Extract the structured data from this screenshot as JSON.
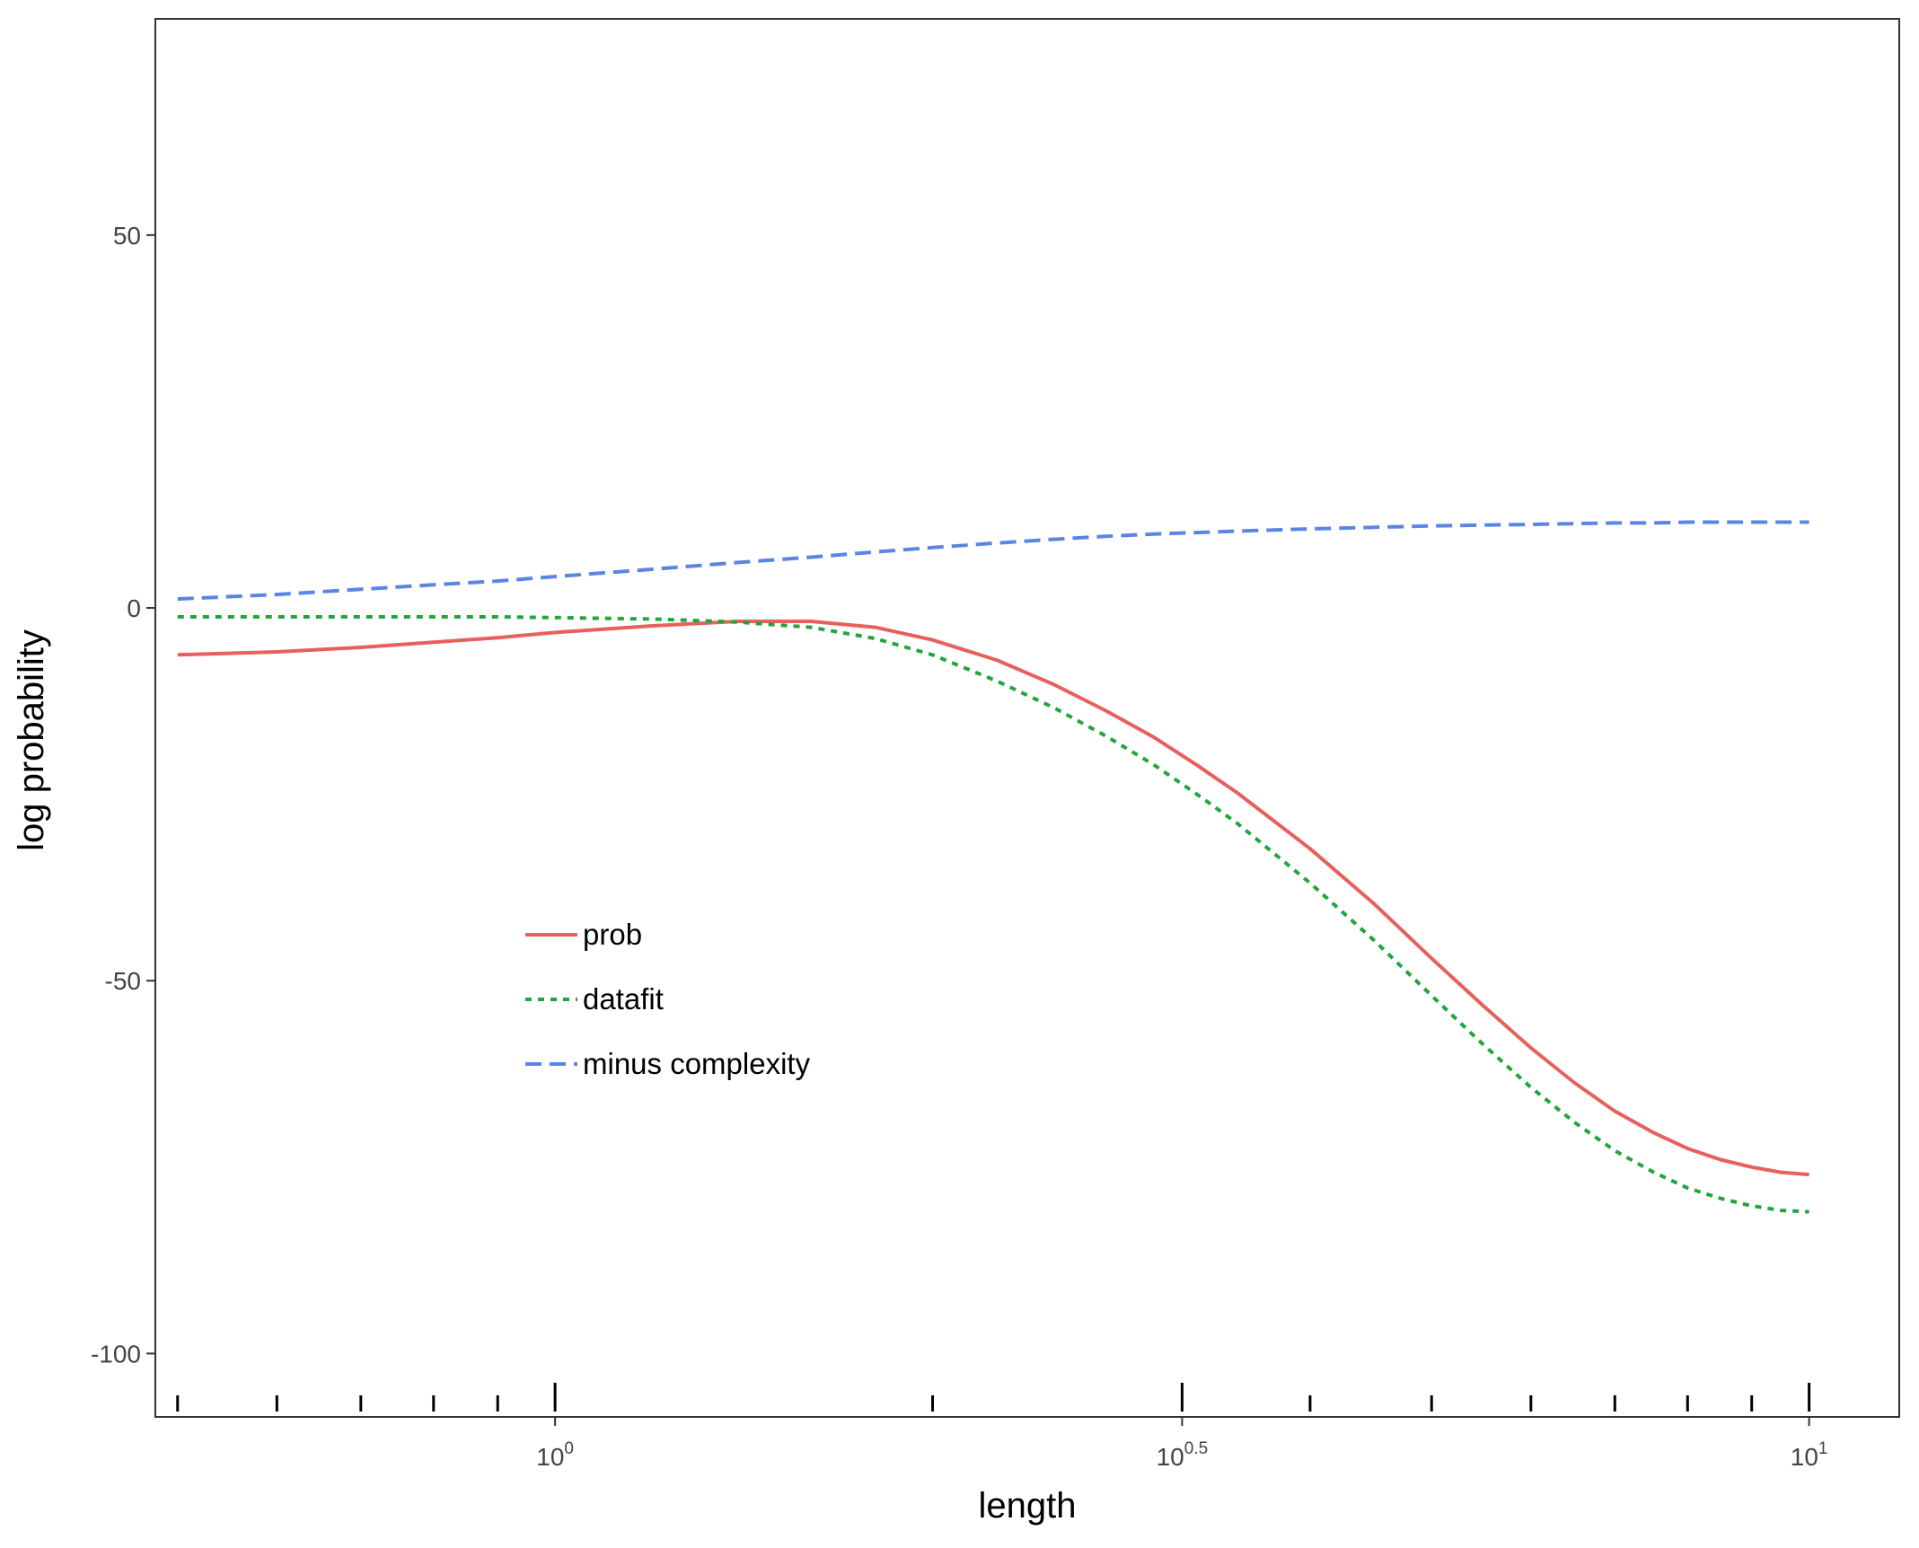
{
  "chart_data": {
    "type": "line",
    "xscale": "log10",
    "xlabel": "length",
    "ylabel": "log probability",
    "xlim": [
      0.48,
      11.8
    ],
    "ylim": [
      -108.5,
      79
    ],
    "grid": false,
    "legend_position": "inside-bottom-left",
    "x_major_ticks": [
      {
        "value": 1,
        "base": "10",
        "exp": "0"
      },
      {
        "value": 3.1623,
        "base": "10",
        "exp": "0.5"
      },
      {
        "value": 10,
        "base": "10",
        "exp": "1"
      }
    ],
    "x_minor_ticks": [
      0.5,
      0.6,
      0.7,
      0.8,
      0.9,
      2,
      4,
      5,
      6,
      7,
      8,
      9
    ],
    "y_ticks": [
      {
        "value": 50,
        "label": "50"
      },
      {
        "value": 0,
        "label": "0"
      },
      {
        "value": -50,
        "label": "-50"
      },
      {
        "value": -100,
        "label": "-100"
      }
    ],
    "x": [
      0.5,
      0.6,
      0.7,
      0.8,
      0.9,
      1.0,
      1.2,
      1.4,
      1.6,
      1.8,
      2.0,
      2.25,
      2.5,
      2.75,
      3.0,
      3.25,
      3.5,
      4.0,
      4.5,
      5.0,
      5.5,
      6.0,
      6.5,
      7.0,
      7.5,
      8.0,
      8.5,
      9.0,
      9.5,
      10.0
    ],
    "series": [
      {
        "name": "prob",
        "color": "#e8605b",
        "dash": "solid",
        "values": [
          -6.3,
          -5.9,
          -5.3,
          -4.6,
          -4.0,
          -3.3,
          -2.4,
          -1.8,
          -1.8,
          -2.6,
          -4.3,
          -7.0,
          -10.3,
          -13.8,
          -17.3,
          -21.1,
          -24.8,
          -32.3,
          -39.7,
          -47.0,
          -53.4,
          -59.0,
          -63.7,
          -67.5,
          -70.3,
          -72.5,
          -74.0,
          -75.0,
          -75.7,
          -76.0
        ]
      },
      {
        "name": "datafit",
        "color": "#22a63b",
        "dash": "dotted",
        "values": [
          -1.2,
          -1.2,
          -1.2,
          -1.2,
          -1.2,
          -1.3,
          -1.5,
          -1.9,
          -2.6,
          -4.1,
          -6.3,
          -9.8,
          -13.4,
          -17.2,
          -21.0,
          -25.0,
          -28.9,
          -36.9,
          -44.6,
          -52.0,
          -58.6,
          -64.3,
          -69.0,
          -72.8,
          -75.6,
          -77.8,
          -79.2,
          -80.2,
          -80.8,
          -81.0
        ]
      },
      {
        "name": "minus complexity",
        "color": "#5a86e3",
        "dash": "dashed",
        "values": [
          1.2,
          1.8,
          2.5,
          3.1,
          3.6,
          4.2,
          5.2,
          6.1,
          6.8,
          7.5,
          8.1,
          8.7,
          9.2,
          9.6,
          9.9,
          10.1,
          10.3,
          10.6,
          10.8,
          11.0,
          11.1,
          11.2,
          11.3,
          11.4,
          11.4,
          11.5,
          11.5,
          11.5,
          11.5,
          11.5
        ]
      }
    ]
  }
}
